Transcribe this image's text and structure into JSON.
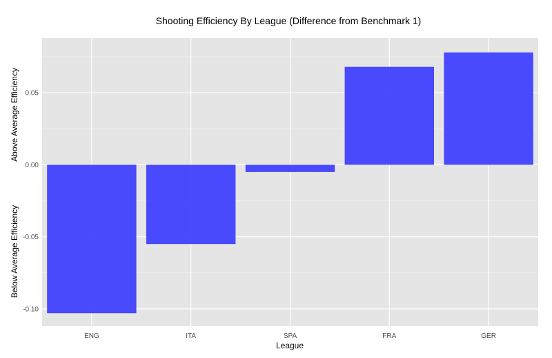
{
  "chart_data": {
    "type": "bar",
    "title": "Shooting Efficiency By League (Difference from Benchmark 1)",
    "xlabel": "League",
    "ylabel_top": "Above Average Efficiency",
    "ylabel_bottom": "Below Average Efficiency",
    "categories": [
      "ENG",
      "ITA",
      "SPA",
      "FRA",
      "GER"
    ],
    "values": [
      -0.103,
      -0.055,
      -0.005,
      0.068,
      0.078
    ],
    "ylim": [
      -0.112,
      0.088
    ],
    "yticks": [
      -0.1,
      -0.05,
      0.0,
      0.05
    ],
    "ytick_labels": [
      "-0.10",
      "-0.05",
      "0.00",
      "0.05"
    ],
    "grid": true,
    "bar_color": "#4040ff",
    "panel_color": "#e5e5e5",
    "grid_color": "#ffffff"
  }
}
